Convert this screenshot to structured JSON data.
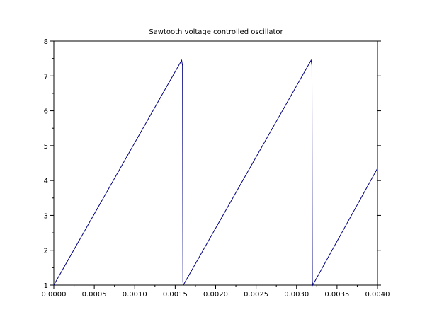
{
  "chart_data": {
    "type": "line",
    "title": "Sawtooth voltage controlled oscillator",
    "xlabel": "",
    "ylabel": "",
    "xlim": [
      0,
      0.004
    ],
    "ylim": [
      1,
      8
    ],
    "x_ticks": [
      "0.0000",
      "0.0005",
      "0.0010",
      "0.0015",
      "0.0020",
      "0.0025",
      "0.0030",
      "0.0035",
      "0.0040"
    ],
    "y_ticks": [
      "1",
      "2",
      "3",
      "4",
      "5",
      "6",
      "7",
      "8"
    ],
    "grid": false,
    "legend": "none",
    "series": [
      {
        "color": "#000080",
        "x": [
          0.0,
          0.00158,
          0.00159,
          0.001595,
          0.0016,
          0.00318,
          0.00319,
          0.003195,
          0.0032,
          0.004
        ],
        "y": [
          1.0,
          7.45,
          7.3,
          1.1,
          1.0,
          7.45,
          7.3,
          1.1,
          1.0,
          4.35
        ]
      }
    ]
  }
}
